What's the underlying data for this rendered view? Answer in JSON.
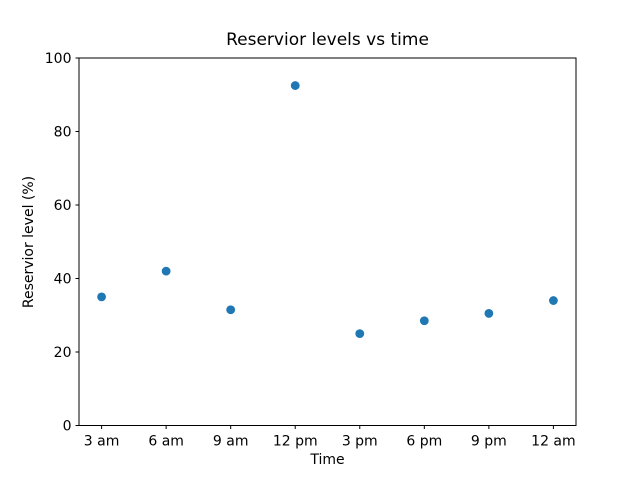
{
  "chart_data": {
    "type": "scatter",
    "title": "Reservior levels vs time",
    "xlabel": "Time",
    "ylabel": "Reservior level (%)",
    "categories": [
      "3 am",
      "6 am",
      "9 am",
      "12 pm",
      "3 pm",
      "6 pm",
      "9 pm",
      "12 am"
    ],
    "values": [
      35,
      42,
      31.5,
      92.5,
      25,
      28.5,
      30.5,
      34
    ],
    "ylim": [
      0,
      100
    ],
    "yticks": [
      0,
      20,
      40,
      60,
      80,
      100
    ],
    "grid": false,
    "legend": "none",
    "marker_color": "#1f77b4",
    "axis_color": "#000000",
    "background_color": "#ffffff"
  }
}
